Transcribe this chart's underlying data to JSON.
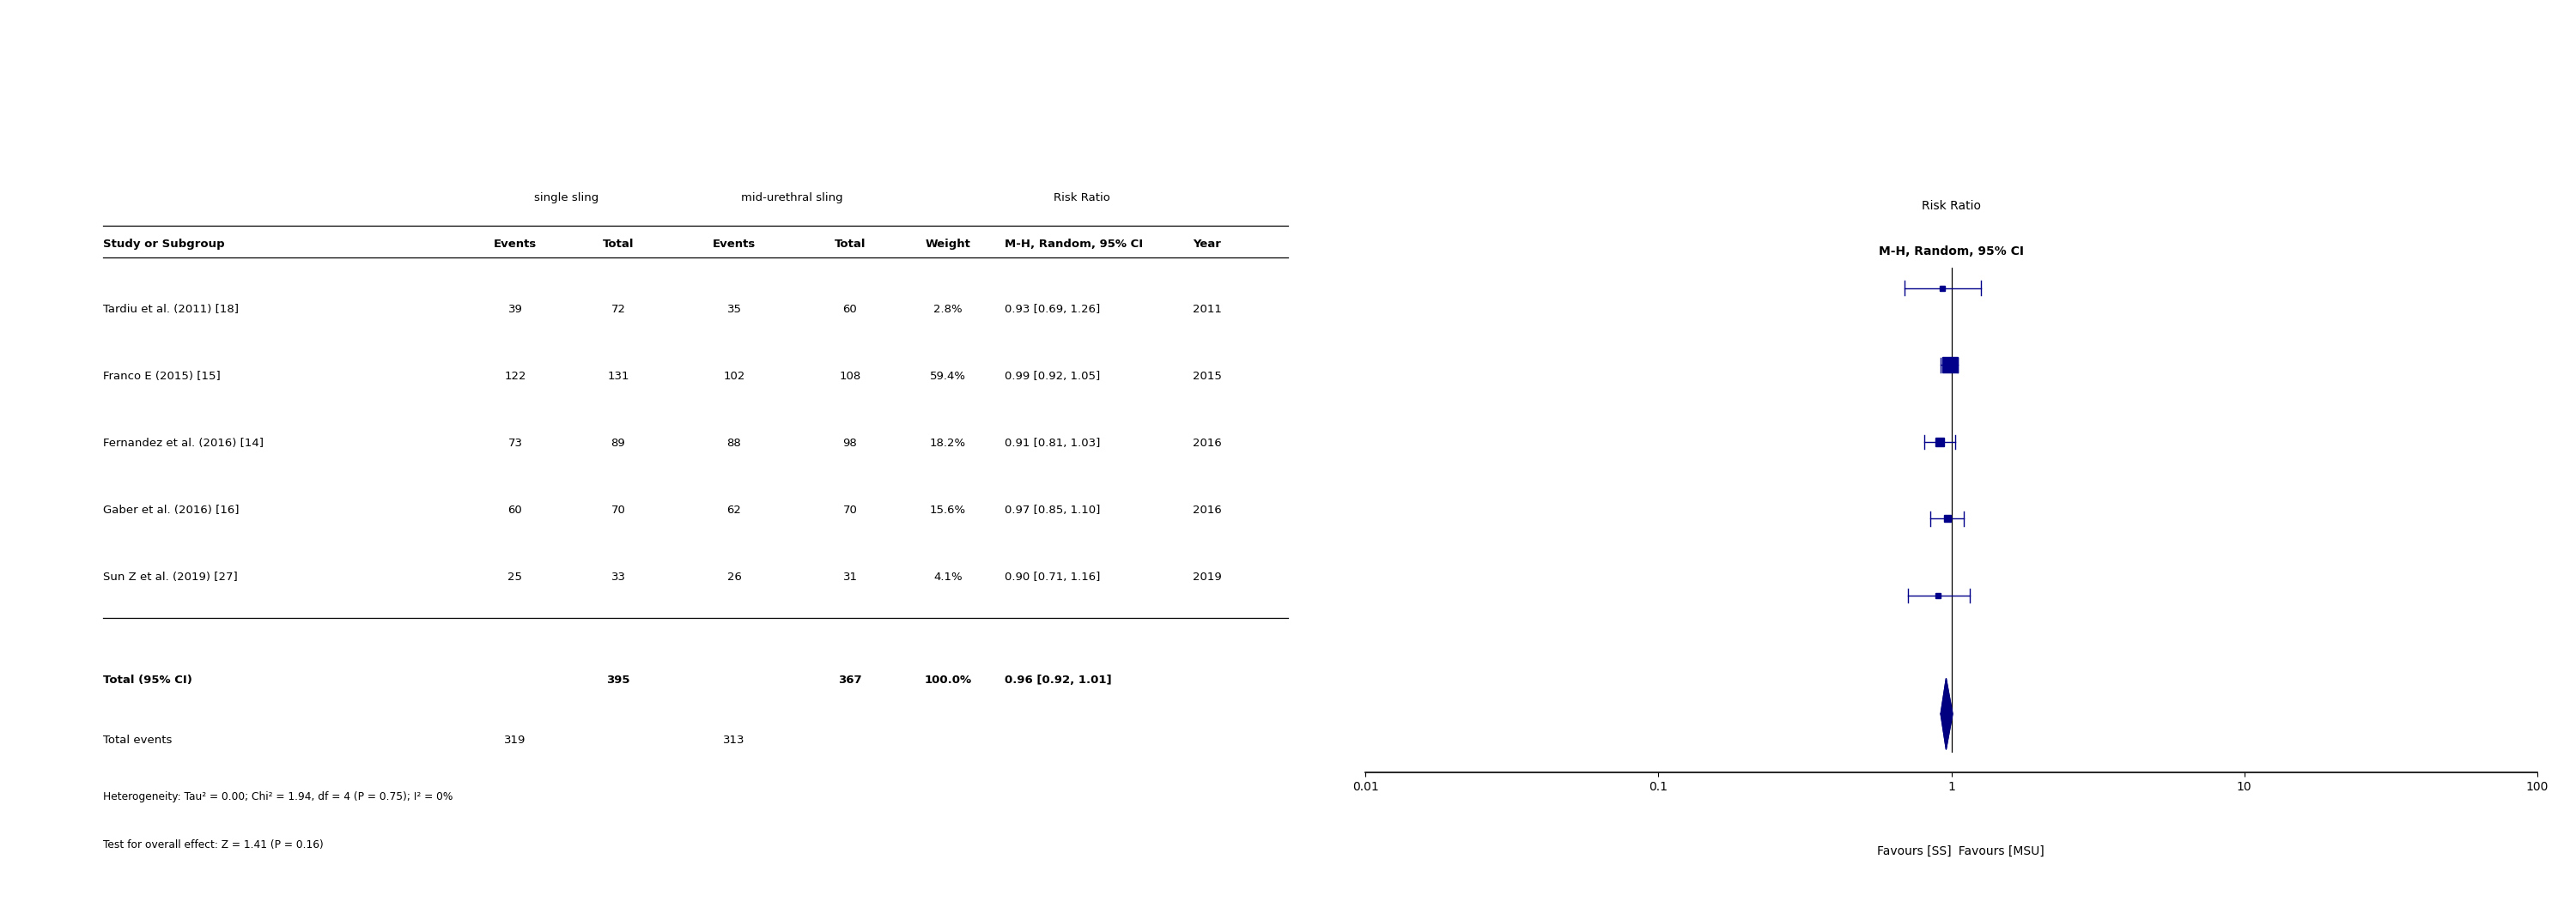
{
  "studies": [
    {
      "name": "Tardiu et al. (2011) [18]",
      "ss_events": 39,
      "ss_total": 72,
      "msu_events": 35,
      "msu_total": 60,
      "weight": "2.8%",
      "rr": 0.93,
      "ci_low": 0.69,
      "ci_high": 1.26,
      "year": "2011"
    },
    {
      "name": "Franco E (2015) [15]",
      "ss_events": 122,
      "ss_total": 131,
      "msu_events": 102,
      "msu_total": 108,
      "weight": "59.4%",
      "rr": 0.99,
      "ci_low": 0.92,
      "ci_high": 1.05,
      "year": "2015"
    },
    {
      "name": "Fernandez et al. (2016) [14]",
      "ss_events": 73,
      "ss_total": 89,
      "msu_events": 88,
      "msu_total": 98,
      "weight": "18.2%",
      "rr": 0.91,
      "ci_low": 0.81,
      "ci_high": 1.03,
      "year": "2016"
    },
    {
      "name": "Gaber et al. (2016) [16]",
      "ss_events": 60,
      "ss_total": 70,
      "msu_events": 62,
      "msu_total": 70,
      "weight": "15.6%",
      "rr": 0.97,
      "ci_low": 0.85,
      "ci_high": 1.1,
      "year": "2016"
    },
    {
      "name": "Sun Z et al. (2019) [27]",
      "ss_events": 25,
      "ss_total": 33,
      "msu_events": 26,
      "msu_total": 31,
      "weight": "4.1%",
      "rr": 0.9,
      "ci_low": 0.71,
      "ci_high": 1.16,
      "year": "2019"
    }
  ],
  "total": {
    "ss_total": 395,
    "msu_total": 367,
    "ss_events": 319,
    "msu_events": 313,
    "rr": 0.96,
    "ci_low": 0.92,
    "ci_high": 1.01,
    "weight": "100.0%"
  },
  "heterogeneity_line1": "Heterogeneity: Tau² = 0.00; Chi² = 1.94, df = 4 (P = 0.75); I² = 0%",
  "heterogeneity_line2": "Test for overall effect: Z = 1.41 (P = 0.16)",
  "weights_numeric": [
    2.8,
    59.4,
    18.2,
    15.6,
    4.1
  ],
  "x_ticks": [
    0.01,
    0.1,
    1,
    10,
    100
  ],
  "x_tick_labels": [
    "0.01",
    "0.1",
    "1",
    "10",
    "100"
  ],
  "square_color": "#00008B",
  "diamond_color": "#000080",
  "bg_color": "#ffffff"
}
